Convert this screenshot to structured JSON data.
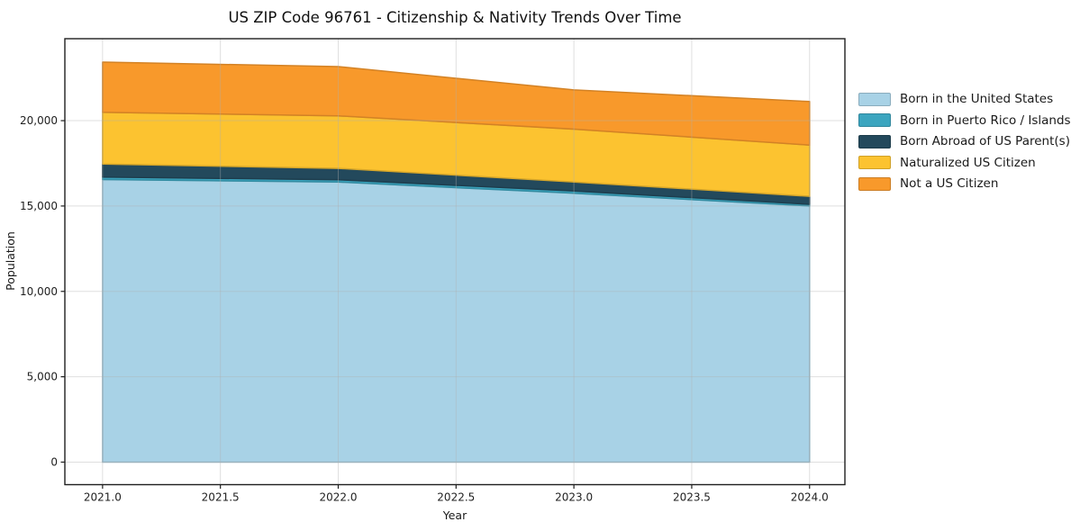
{
  "chart_data": {
    "type": "area",
    "stacked": true,
    "title": "US ZIP Code 96761 - Citizenship & Nativity Trends Over Time",
    "xlabel": "Year",
    "ylabel": "Population",
    "x": [
      2021,
      2022,
      2023,
      2024
    ],
    "series": [
      {
        "name": "Born in the United States",
        "color": "#a8d2e6",
        "values": [
          16550,
          16400,
          15750,
          15000
        ]
      },
      {
        "name": "Born in Puerto Rico / Islands",
        "color": "#3ba5bf",
        "values": [
          150,
          140,
          130,
          100
        ]
      },
      {
        "name": "Born Abroad of US Parent(s)",
        "color": "#23495c",
        "values": [
          760,
          665,
          530,
          470
        ]
      },
      {
        "name": "Naturalized US Citizen",
        "color": "#fcc330",
        "values": [
          3030,
          3080,
          3090,
          3000
        ]
      },
      {
        "name": "Not a US Citizen",
        "color": "#f8992b",
        "values": [
          2940,
          2880,
          2300,
          2550
        ]
      }
    ],
    "totals": [
      23430,
      23165,
      21800,
      21120
    ],
    "xlim": [
      2020.84,
      2024.15
    ],
    "ylim": [
      -1320,
      24800
    ],
    "xticks": [
      {
        "value": 2021.0,
        "label": "2021.0"
      },
      {
        "value": 2021.5,
        "label": "2021.5"
      },
      {
        "value": 2022.0,
        "label": "2022.0"
      },
      {
        "value": 2022.5,
        "label": "2022.5"
      },
      {
        "value": 2023.0,
        "label": "2023.0"
      },
      {
        "value": 2023.5,
        "label": "2023.5"
      },
      {
        "value": 2024.0,
        "label": "2024.0"
      }
    ],
    "yticks": [
      {
        "value": 0,
        "label": "0"
      },
      {
        "value": 5000,
        "label": "5,000"
      },
      {
        "value": 10000,
        "label": "10,000"
      },
      {
        "value": 15000,
        "label": "15,000"
      },
      {
        "value": 20000,
        "label": "20,000"
      }
    ],
    "grid": true,
    "legend_position": "right",
    "colors": {
      "spine": "#1f1f1f",
      "tick_text": "#1f1f1f",
      "grid": "rgba(176,176,176,0.4)"
    }
  }
}
